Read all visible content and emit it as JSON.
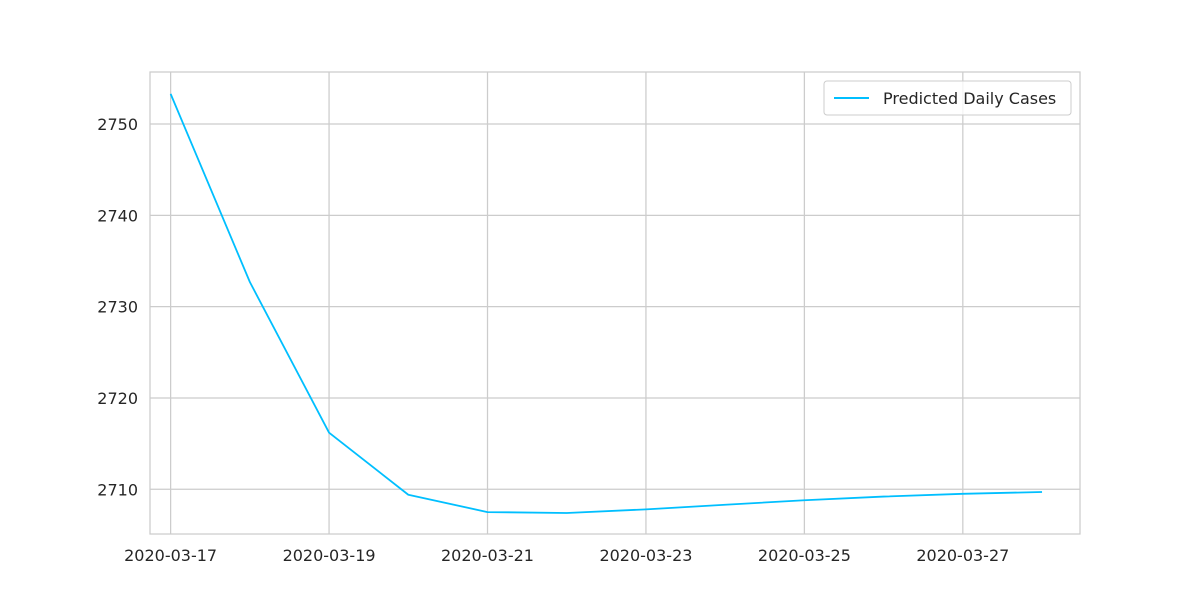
{
  "chart_data": {
    "type": "line",
    "title": "",
    "xlabel": "",
    "ylabel": "",
    "x": [
      "2020-03-17",
      "2020-03-18",
      "2020-03-19",
      "2020-03-20",
      "2020-03-21",
      "2020-03-22",
      "2020-03-23",
      "2020-03-24",
      "2020-03-25",
      "2020-03-26",
      "2020-03-27",
      "2020-03-28"
    ],
    "series": [
      {
        "name": "Predicted Daily Cases",
        "color": "#00bfff",
        "values": [
          2753.3,
          2732.7,
          2716.2,
          2709.4,
          2707.5,
          2707.4,
          2707.8,
          2708.3,
          2708.8,
          2709.2,
          2709.5,
          2709.7
        ]
      }
    ],
    "xticks": [
      "2020-03-17",
      "2020-03-19",
      "2020-03-21",
      "2020-03-23",
      "2020-03-25",
      "2020-03-27"
    ],
    "yticks": [
      2710,
      2720,
      2730,
      2740,
      2750
    ],
    "xlim": [
      "2020-03-16 17:45",
      "2020-03-28 11:30"
    ],
    "ylim": [
      2705.1,
      2755.7
    ],
    "grid": true,
    "legend_position": "top-right"
  }
}
